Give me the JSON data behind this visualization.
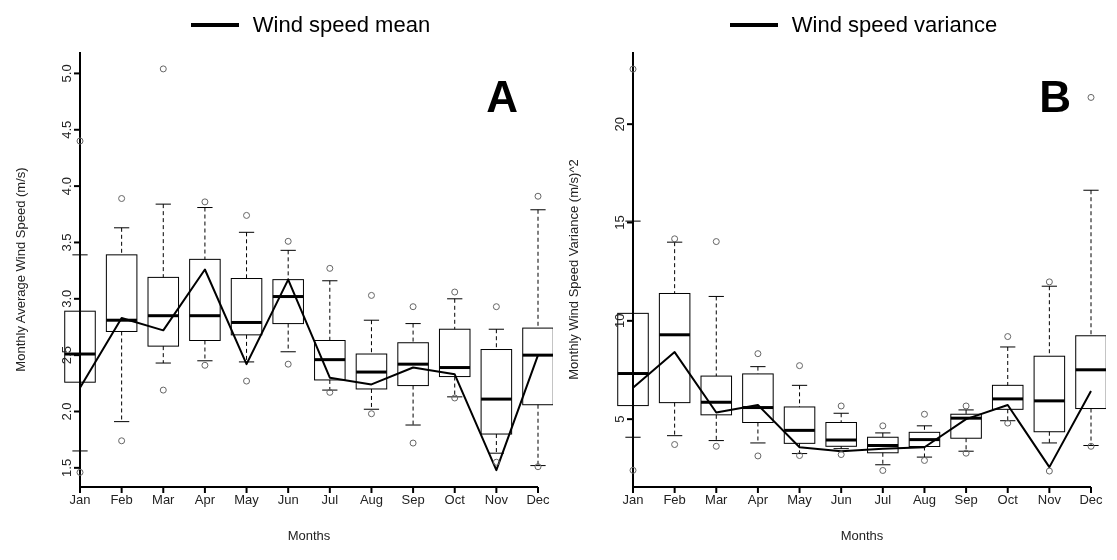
{
  "chart_data": [
    {
      "type": "box",
      "xlabel": "Months",
      "ylabel": "Monthly Average Wind Speed (m/s)",
      "legend": "top",
      "annotations": [
        "A"
      ],
      "categories": [
        "Jan",
        "Feb",
        "Mar",
        "Apr",
        "May",
        "Jun",
        "Jul",
        "Aug",
        "Sep",
        "Oct",
        "Nov",
        "Dec"
      ],
      "ylim": [
        1.33,
        5.19
      ],
      "yticks": [
        1.5,
        {
          "value": 2,
          "label": "2.0"
        },
        2.5,
        {
          "value": 3,
          "label": "3.0"
        },
        3.5,
        {
          "value": 4,
          "label": "4.0"
        },
        4.5,
        {
          "value": 5,
          "label": "5.0"
        }
      ],
      "series": [
        {
          "color": "#000000",
          "boxes": [
            {
              "low": 1.65,
              "q1": 2.26,
              "median": 2.51,
              "q3": 2.89,
              "high": 3.39,
              "outliers": [
                4.4,
                1.46
              ]
            },
            {
              "low": 1.91,
              "q1": 2.71,
              "median": 2.81,
              "q3": 3.39,
              "high": 3.63,
              "outliers": [
                3.89,
                1.74
              ]
            },
            {
              "low": 2.43,
              "q1": 2.58,
              "median": 2.85,
              "q3": 3.19,
              "high": 3.84,
              "outliers": [
                5.04,
                2.19
              ]
            },
            {
              "low": 2.45,
              "q1": 2.63,
              "median": 2.85,
              "q3": 3.35,
              "high": 3.81,
              "outliers": [
                3.86,
                2.41
              ]
            },
            {
              "low": 2.44,
              "q1": 2.68,
              "median": 2.79,
              "q3": 3.18,
              "high": 3.59,
              "outliers": [
                3.74,
                2.27
              ]
            },
            {
              "low": 2.53,
              "q1": 2.78,
              "median": 3.02,
              "q3": 3.17,
              "high": 3.43,
              "outliers": [
                3.51,
                2.42
              ]
            },
            {
              "low": 2.19,
              "q1": 2.28,
              "median": 2.46,
              "q3": 2.63,
              "high": 3.16,
              "outliers": [
                3.27,
                2.17
              ]
            },
            {
              "low": 2.02,
              "q1": 2.2,
              "median": 2.35,
              "q3": 2.51,
              "high": 2.81,
              "outliers": [
                3.03,
                1.98
              ]
            },
            {
              "low": 1.88,
              "q1": 2.23,
              "median": 2.42,
              "q3": 2.61,
              "high": 2.78,
              "outliers": [
                2.93,
                1.72
              ]
            },
            {
              "low": 2.13,
              "q1": 2.31,
              "median": 2.39,
              "q3": 2.73,
              "high": 3.0,
              "outliers": [
                3.06,
                2.12
              ]
            },
            {
              "low": 1.63,
              "q1": 1.8,
              "median": 2.11,
              "q3": 2.55,
              "high": 2.73,
              "outliers": [
                2.93,
                1.55
              ]
            },
            {
              "low": 1.52,
              "q1": 2.06,
              "median": 2.5,
              "q3": 2.74,
              "high": 3.79,
              "outliers": [
                3.91,
                1.51
              ]
            }
          ]
        },
        {
          "type": "line",
          "name": "Wind speed mean",
          "color": "#000000",
          "values": [
            2.21,
            2.83,
            2.72,
            3.26,
            2.42,
            3.17,
            2.3,
            2.24,
            2.39,
            2.33,
            1.48,
            2.5
          ]
        }
      ]
    },
    {
      "type": "box",
      "xlabel": "Months",
      "ylabel": "Monthly Wind Speed Variance (m/s)^2",
      "legend": "top",
      "annotations": [
        "B"
      ],
      "categories": [
        "Jan",
        "Feb",
        "Mar",
        "Apr",
        "May",
        "Jun",
        "Jul",
        "Aug",
        "Sep",
        "Oct",
        "Nov",
        "Dec"
      ],
      "ylim": [
        1.55,
        23.67
      ],
      "yticks": [
        5,
        10,
        15,
        20
      ],
      "series": [
        {
          "color": "#000000",
          "boxes": [
            {
              "low": 4.08,
              "q1": 5.69,
              "median": 7.32,
              "q3": 10.38,
              "high": 15.07,
              "outliers": [
                22.8,
                2.4
              ]
            },
            {
              "low": 4.16,
              "q1": 5.84,
              "median": 9.29,
              "q3": 11.39,
              "high": 14.0,
              "outliers": [
                14.17,
                3.71
              ]
            },
            {
              "low": 3.91,
              "q1": 5.22,
              "median": 5.86,
              "q3": 7.19,
              "high": 11.24,
              "outliers": [
                14.03,
                3.62
              ]
            },
            {
              "low": 3.79,
              "q1": 4.83,
              "median": 5.59,
              "q3": 7.3,
              "high": 7.67,
              "outliers": [
                8.33,
                3.13
              ]
            },
            {
              "low": 3.25,
              "q1": 3.77,
              "median": 4.43,
              "q3": 5.62,
              "high": 6.72,
              "outliers": [
                7.72,
                3.15
              ]
            },
            {
              "low": 3.5,
              "q1": 3.62,
              "median": 3.94,
              "q3": 4.83,
              "high": 5.3,
              "outliers": [
                5.67,
                3.2
              ]
            },
            {
              "low": 2.68,
              "q1": 3.29,
              "median": 3.66,
              "q3": 4.08,
              "high": 4.3,
              "outliers": [
                4.66,
                2.39
              ]
            },
            {
              "low": 3.07,
              "q1": 3.61,
              "median": 3.96,
              "q3": 4.33,
              "high": 4.66,
              "outliers": [
                5.25,
                2.9
              ]
            },
            {
              "low": 3.37,
              "q1": 4.03,
              "median": 5.05,
              "q3": 5.25,
              "high": 5.47,
              "outliers": [
                5.67,
                3.27
              ]
            },
            {
              "low": 4.92,
              "q1": 5.5,
              "median": 6.03,
              "q3": 6.72,
              "high": 8.67,
              "outliers": [
                9.2,
                4.8
              ]
            },
            {
              "low": 3.79,
              "q1": 4.36,
              "median": 5.93,
              "q3": 8.2,
              "high": 11.76,
              "outliers": [
                11.98,
                2.36
              ]
            },
            {
              "low": 3.66,
              "q1": 5.54,
              "median": 7.51,
              "q3": 9.24,
              "high": 16.64,
              "outliers": [
                21.36,
                3.62
              ]
            }
          ]
        },
        {
          "type": "line",
          "name": "Wind speed variance",
          "color": "#000000",
          "values": [
            6.6,
            8.41,
            5.34,
            5.72,
            3.57,
            3.37,
            3.49,
            3.57,
            5.0,
            5.72,
            2.56,
            6.43
          ]
        }
      ]
    }
  ]
}
